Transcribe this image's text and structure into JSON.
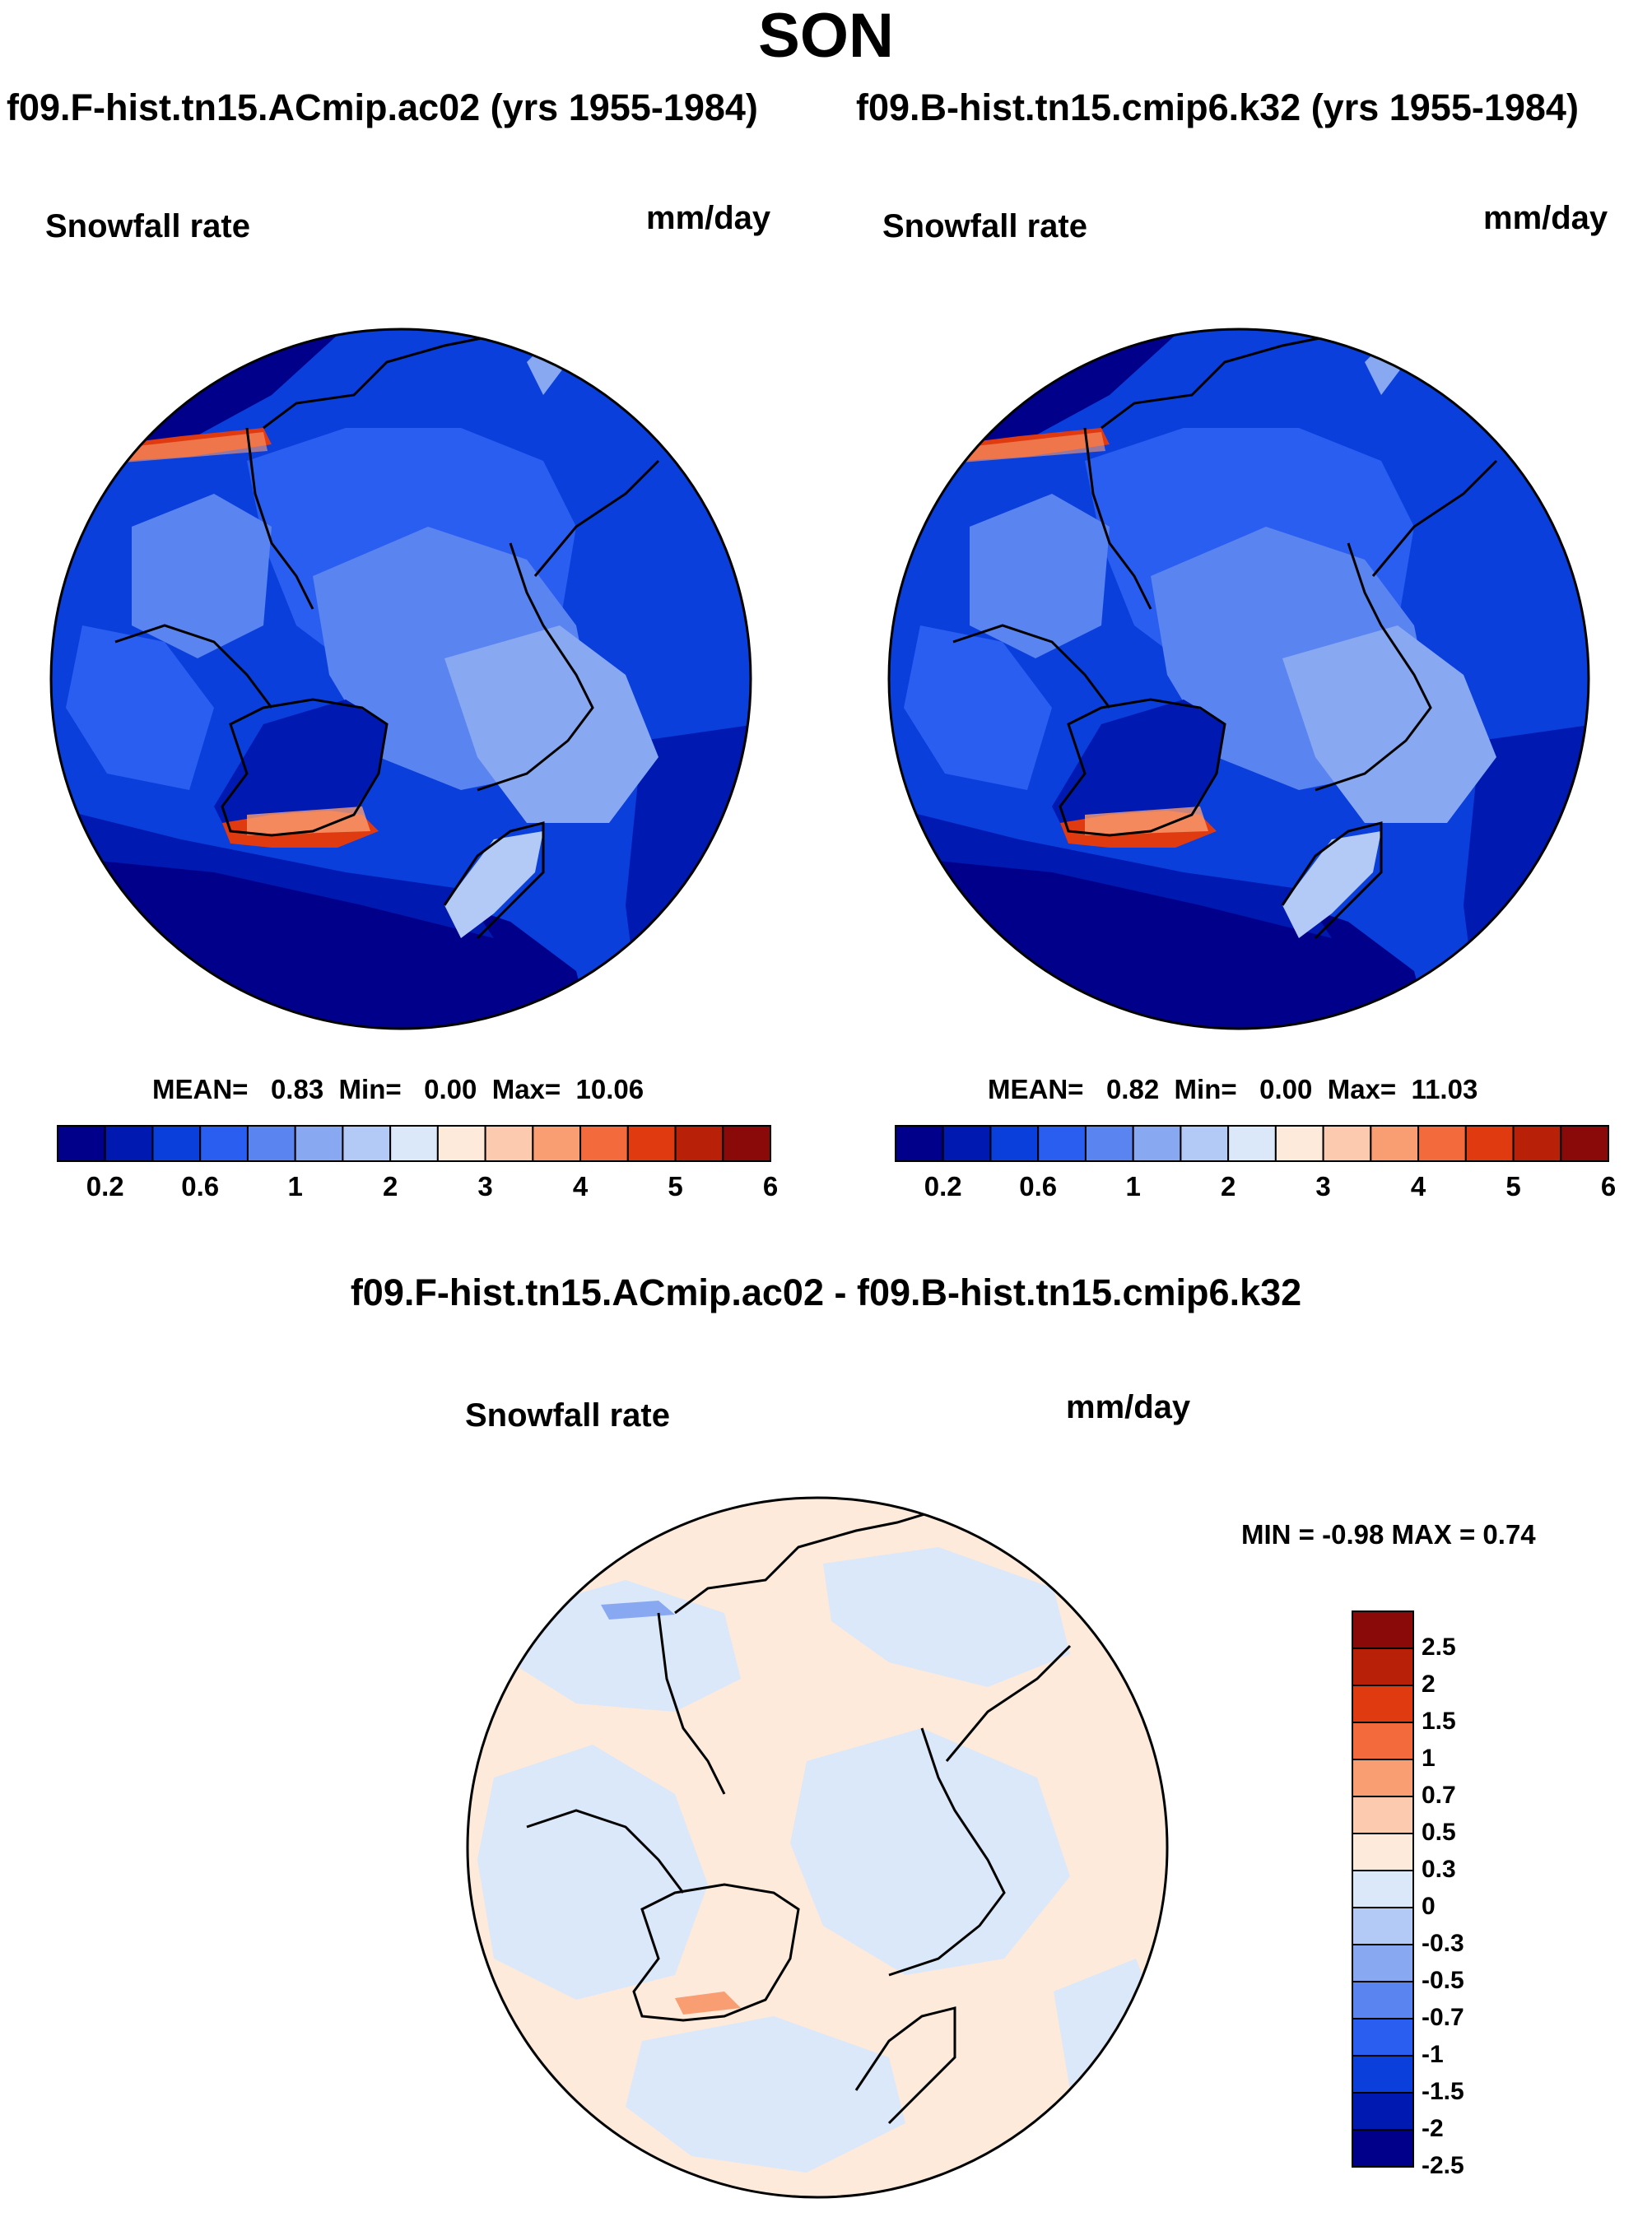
{
  "title": "SON",
  "panels": [
    {
      "run_title": "f09.F-hist.tn15.ACmip.ac02 (yrs 1955-1984)",
      "variable": "Snowfall rate",
      "units": "mm/day",
      "stats": {
        "mean_label": "MEAN=",
        "mean": "0.83",
        "min_label": "Min=",
        "min": "0.00",
        "max_label": "Max=",
        "max": "10.06"
      }
    },
    {
      "run_title": "f09.B-hist.tn15.cmip6.k32 (yrs 1955-1984)",
      "variable": "Snowfall rate",
      "units": "mm/day",
      "stats": {
        "mean_label": "MEAN=",
        "mean": "0.82",
        "min_label": "Min=",
        "min": "0.00",
        "max_label": "Max=",
        "max": "11.03"
      }
    }
  ],
  "abs_colorbar": {
    "colors": [
      "#00008a",
      "#0019b0",
      "#0a3fdc",
      "#2a5ef0",
      "#5a84f0",
      "#88a8f2",
      "#b4caf6",
      "#dae8fa",
      "#fdeadb",
      "#fccaae",
      "#f99d72",
      "#f36a3c",
      "#e03a10",
      "#b82008",
      "#8a0a0a"
    ],
    "tick_labels": [
      "0.2",
      "0.6",
      "1",
      "2",
      "3",
      "4",
      "5",
      "6"
    ]
  },
  "diff_panel": {
    "title": "f09.F-hist.tn15.ACmip.ac02 - f09.B-hist.tn15.cmip6.k32",
    "variable": "Snowfall rate",
    "units": "mm/day",
    "range_text": "MIN =  -0.98 MAX =   0.74"
  },
  "diff_colorbar": {
    "colors": [
      "#8a0a0a",
      "#b82008",
      "#e03a10",
      "#f36a3c",
      "#f99d72",
      "#fccaae",
      "#fdeadb",
      "#dae8fa",
      "#b4caf6",
      "#88a8f2",
      "#5a84f0",
      "#2a5ef0",
      "#0a3fdc",
      "#0019b0",
      "#00008a"
    ],
    "tick_labels": [
      "2.5",
      "2",
      "1.5",
      "1",
      "0.7",
      "0.5",
      "0.3",
      "0",
      "-0.3",
      "-0.5",
      "-0.7",
      "-1",
      "-1.5",
      "-2",
      "-2.5"
    ]
  },
  "chart_data": [
    {
      "type": "heatmap",
      "title": "f09.F-hist.tn15.ACmip.ac02 (yrs 1955-1984)",
      "variable": "Snowfall rate",
      "units": "mm/day",
      "projection": "north polar stereographic",
      "mean": 0.83,
      "min": 0.0,
      "max": 10.06,
      "levels": [
        0.2,
        0.6,
        1,
        2,
        3,
        4,
        5,
        6
      ]
    },
    {
      "type": "heatmap",
      "title": "f09.B-hist.tn15.cmip6.k32 (yrs 1955-1984)",
      "variable": "Snowfall rate",
      "units": "mm/day",
      "projection": "north polar stereographic",
      "mean": 0.82,
      "min": 0.0,
      "max": 11.03,
      "levels": [
        0.2,
        0.6,
        1,
        2,
        3,
        4,
        5,
        6
      ]
    },
    {
      "type": "heatmap",
      "title": "f09.F-hist.tn15.ACmip.ac02 - f09.B-hist.tn15.cmip6.k32",
      "variable": "Snowfall rate",
      "units": "mm/day",
      "projection": "north polar stereographic",
      "min": -0.98,
      "max": 0.74,
      "levels": [
        -2.5,
        -2,
        -1.5,
        -1,
        -0.7,
        -0.5,
        -0.3,
        0,
        0.3,
        0.5,
        0.7,
        1,
        1.5,
        2,
        2.5
      ]
    }
  ]
}
